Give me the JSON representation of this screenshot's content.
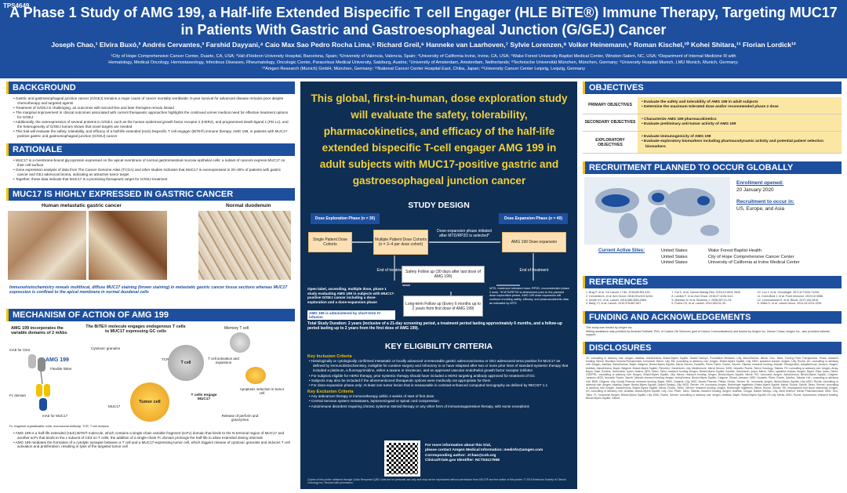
{
  "header": {
    "poster_id": "TPS4649",
    "title_line1": "A Phase 1 Study of AMG 199, a Half-life Extended Bispecific T cell Engager (HLE BiTE®) Immune Therapy, Targeting MUC17",
    "title_line2": "in Patients With Gastric and Gastroesophageal Junction (G/GEJ) Cancer",
    "authors": "Joseph Chao,¹ Elvira Buxó,² Andrés Cervantes,³ Farshid Dayyani,⁴ Caio Max Sao Pedro Rocha Lima,⁵ Richard Greil,⁶ Hanneke van Laarhoven,⁷ Sylvie Lorenzen,⁸ Volker Heinemann,⁹ Roman Kischel,¹⁰ Kohei Shitara,¹¹ Florian Lordick¹²",
    "affiliations_line1": "¹City of Hope Comprehensive Cancer Center, Duarte, CA, USA; ²Vall d'Hebron University Hospital, Barcelona, Spain; ³University of Valencia, Valencia, Spain; ⁴University of California Irvine, Irvine, CA, USA; ⁵Wake Forest University Baptist Medical Center, Winston-Salem, NC, USA; ⁶Department of Internal Medicine III with",
    "affiliations_line2": "Hematology, Medical Oncology, Hemostaseology, Infectious Diseases, Rheumatology, Oncologic Center, Paracelsus Medical University, Salzburg, Austria; ⁷University of Amsterdam, Amsterdam, Netherlands; ⁸Technische Universität München, München, Germany; ⁹University Hospital Munich, LMU Munich, Munich, Germany;",
    "affiliations_line3": "¹⁰Amgen Research (Munich) GmbH, München, Germany; ¹¹National Cancer Center Hospital East, Chiba, Japan; ¹²University Cancer Center Leipzig, Leipzig, Germany"
  },
  "left": {
    "background": {
      "heading": "BACKGROUND",
      "bullets": [
        "Gastric and gastroesophageal junction cancer (G/GEJ) remains a major cause of cancer mortality worldwide; 5-year survival for advanced disease remains poor despite chemotherapy and targeted agents",
        "Treatment of G/GEJ is challenging, as outcomes with second-line and later therapies remain limited",
        "The marginal improvement in clinical outcomes associated with current therapeutic approaches highlights the continued unmet medical need for effective treatment options for G/GEJ",
        "Additionally, the overexpression of several proteins in G/GEJ, such as the human epidermal growth factor receptor 2 (HER2), and programmed death-ligand 1 (PD-L1), and the heterogeneity of G/GEJ tumors shows that novel targets are needed",
        "This trial will evaluate the safety, tolerability, and efficacy of a half-life extended (HLE) bispecific T cell engager (BiTE®) immune therapy, AMG 199, in patients with MUC17-positive gastric and gastroesophageal junction (G/GEJ) cancer"
      ]
    },
    "rationale": {
      "heading": "RATIONALE",
      "bullets": [
        "MUC17 is a membrane-bound glycoprotein expressed on the apical membrane of normal gastrointestinal mucosa epithelial cells; a subset of cancers express MUC17 on their cell surface",
        "Gene expression analysis of data from The Cancer Genome Atlas (TCGA) and other studies indicates that MUC17 is overexpressed in 20–30% of patients with gastric cancer and GEJ adenocarcinoma, indicating an attractive tumor target",
        "Together, these data indicate that MUC17 is a promising therapeutic target for G/GEJ treatment"
      ]
    },
    "muc17": {
      "heading": "MUC17 IS HIGHLY EXPRESSED IN GASTRIC CANCER",
      "image1_label": "Human metastatic gastric cancer",
      "image2_label": "Normal duodenum",
      "caption": "Immunohistochemistry reveals multifocal, diffuse MUC17 staining (brown staining) in metastatic gastric cancer tissue sections whereas MUC17 expression is confined to the apical membrane in normal duodenal cells"
    },
    "moa": {
      "heading": "MECHANISM OF ACTION OF AMG 199",
      "text_amg": "AMG 199 incorporates the variable domains of 2 mAbs",
      "text_bite": "The BiTE® molecule engages endogenous T cells to MUC17 expressing GC cells",
      "fv_cd3": "mAb for CD3",
      "amg_label": "AMG 199",
      "flexible_linker": "Flexible linker",
      "fc_domain": "Fc domain",
      "mab_muc17": "mAb for MUC17",
      "cytotoxic": "Cytotoxic granules",
      "tcr": "TCR",
      "cd3": "CD3",
      "t_cell": "T cell",
      "tumor_cell": "Tumor cell",
      "muc17_label": "MUC17",
      "memory": "Memory T cell",
      "activation": "T cell activation and expansion",
      "apoptosis": "Apoptosis induction in tumor cell",
      "t_cells_engage": "T cells engage MUC17",
      "release": "Release of perforin and granzymes",
      "footnote": "Fc, fragment crystallizable; mAb, monoclonal antibody; TCR, T cell receptor",
      "bullets": [
        "AMG 199 is a half-life extended (HLE) BiTE® molecule, which contains a single-chain variable fragment (scFv) domain that binds to the N-terminal region of MUC17 and another scFv that binds to the ε subunit of CD3 on T cells; the addition of a single-chain Fc domain prolongs the half-life to allow extended dosing intervals",
        "AMG 199 mediates the formation of a cytolytic synapse between a T cell and a MUC17-expressing tumor cell, which triggers release of cytotoxic granules and induces T cell activation and proliferation, resulting in lysis of the targeted tumor cell"
      ]
    }
  },
  "mid": {
    "hero": "This global, first-in-human, dose exploration study will evaluate the safety, tolerability, pharmacokinetics, and efficacy of the half-life extended bispecific T-cell engager AMG 199 in adult subjects with MUC17-positive gastric and gastroesophageal junction cancer",
    "study_design": {
      "heading": "STUDY DESIGN",
      "exploration_phase": "Dose Exploration Phase (n = 30)",
      "expansion_phase": "Dose Expansion Phase (n = 40)",
      "single_cohorts": "Single Patient Dose Cohorts",
      "multiple_cohorts": "Multiple Patient Dose Cohorts (n = 3–4 per dose cohort)",
      "initiated": "Dose-expansion phase initiated after MTD/RP2D is selected*",
      "expansion_box": "AMG 199 Dose expansion",
      "end1": "End of treatment",
      "end2": "End of treatment",
      "safety": "Safety Follow up (30 days after last dose of AMG 199)",
      "longterm": "Long-term Follow up (Every 6 months up to 2 years from first dose of AMG 199)",
      "desc": "Open-label, ascending, multiple dose, phase 1 study evaluating AMG 199 in subjects with MUC17-positive G/GEJ cancer including a dose-exploration and a dose-expansion phase",
      "admin": "AMG 199 is administered by short-term IV infusion",
      "note": "MTD, maximum tolerated dose; RP2D, recommended phase 2 dose. *If MTD/RP2D is determined prior to the planned dose exploration phase, AMG 199 dose expansion will continue enrolling safety, efficacy, and pharmacokinetic data as indicated by MTD",
      "duration": "Total Study Duration: 2 years (inclusive of a 21-day screening period, a treatment period lasting approximately 6 months, and a follow-up period lasting up to 2 years from the first dose of AMG 199)."
    },
    "eligibility": {
      "heading": "KEY ELIGIBILITY CRITERIA",
      "inclusion_head": "Key Inclusion Criteria",
      "inclusion": [
        "Histologically or cytologically confirmed metastatic or locally advanced unresectable gastric adenocarcinoma or GEJ adenocarcinoma positive for MUC17 as defined by immunohistochemistry, ineligible for curative surgery and refractory to or have relapsed after two or more prior lines of standard systemic therapy that included a platinum, a fluoropyrimidine, either a taxane or irinotecan, and an approved vascular endothelial growth factor receptor inhibitor",
        "For subjects eligible for HER2 therapy, prior systemic therapy should have included a HER2 targeting antibody approved for treatment of GC",
        "Subjects may also be included if the aforementioned therapeutic options were medically not appropriate for them",
        "For dose-expansion phase only: At least one tumor lesion that is measurable in contrast-enhanced computed tomography as defined by RECIST 1.1"
      ],
      "exclusion_head": "Key Exclusion Criteria",
      "exclusion": [
        "Any anticancer therapy or immunotherapy within 4 weeks of start of first dose",
        "Central nervous system metastases, leptomeningeal or spinal cord compression",
        "Autoimmune disorders requiring chronic systemic steroid therapy or any other form of immunosuppressive therapy, with some exceptions"
      ],
      "contact_head": "For more information about this trial,",
      "contact_email": "please contact Amgen Medical Information: medinfo@amgen.com",
      "contact_author": "Corresponding author: JChao@coh.org",
      "clinical_id": "ClinicalTrials.gov Identifier: NCT04117958",
      "copies": "Copies of this poster obtained through Quick Response (QR) Code are for personal use only and may not be reproduced without permission from ASCO® and the author of this poster. © 2019 American Society of Clinical Oncology Inc. Reused with permission."
    }
  },
  "right": {
    "objectives": {
      "heading": "OBJECTIVES",
      "rows": [
        {
          "label": "PRIMARY OBJECTIVES",
          "items": [
            "Evaluate the safety and tolerability of AMG 199 in adult subjects",
            "Determine the maximum tolerated dose and/or recommended phase 2 dose"
          ]
        },
        {
          "label": "SECONDARY OBJECTIVES",
          "items": [
            "Characterize AMG 199 pharmacokinetics",
            "Evaluate preliminary anti-tumor activity of AMG 199"
          ]
        },
        {
          "label": "EXPLORATORY OBJECTIVES",
          "items": [
            "Evaluate immunogenicity of AMG 199",
            "Evaluate exploratory biomarkers including pharmacodynamic activity and potential patient selection biomarkers"
          ]
        }
      ]
    },
    "recruitment": {
      "heading": "RECRUITMENT PLANNED TO OCCUR GLOBALLY",
      "enroll_label": "Enrollment opened:",
      "enroll_date": "20 January 2020",
      "recruit_label": "Recruitment to occur in:",
      "recruit_regions": "US, Europe, and Asia",
      "sites_label": "Current Active Sites:",
      "sites": [
        {
          "country": "United States",
          "site": "Wake Forest Baptist Health"
        },
        {
          "country": "United States",
          "site": "City of Hope Comprehensive Cancer Center"
        },
        {
          "country": "United States",
          "site": "University of California at Irvine Medical Center"
        }
      ]
    },
    "references": {
      "heading": "REFERENCES",
      "items": [
        "1. Bray F, et al. CA Cancer J Clin. 2018;68:394-424.",
        "2. Cervantes A, et al. Ann Oncol. 2018;29:iv102-iv104.",
        "3. Smyth EC, et al. Lancet. 2016;388:2654-2664.",
        "4. Bang YJ, et al. Lancet. 2010;376:687-697.",
        "5. Fuchs CS, et al. Lancet. 2014;383:31-39.",
        "6. Wilke H, et al. Lancet Oncol. 2014;15:1224-1235.",
        "7. Cai Z, et al. Cancer Manag Res. 2018;10:2631-2640.",
        "8. Lordick F, et al. Ann Oncol. 2016;27:1106-1112.",
        "9. Moniaux N, et al. Biochem J. 2006;397:21-29.",
        "10. Luu Y, et al. Oncotarget. 2017;8:71234-71245.",
        "11. Kuhn-Bold J, et al. Front Immunol. 2019;10:3088.",
        "12. Lorenczewski G, et al. Blood. 2017;130:2815."
      ]
    },
    "funding": {
      "heading": "FUNDING AND ACKNOWLEDGEMENTS",
      "text1": "This study was funded by Amgen Inc.",
      "text2": "Writing assistance was provided by Amanda Rothwell, PhD, of Cactus Life Sciences (part of Cactus Communications) and funded by Amgen Inc. Zanner Chase, Amgen Inc., also provided editorial support."
    },
    "disclosures": {
      "heading": "DISCLOSURES",
      "text": "JC: consulting or advisory role: Amgen, Astellas, AstraZeneca, Bristol-Myers Squibb, Daiichi Sankyo, Foundation Medicine, Lilly, MacroGenics, Merck, Ono, Taiho, Turning Point Therapeutics, Yiviva; research funding: Merck, Brooklyn ImmunoTherapeutics; honoraria: Merck, Lilly. EB: consulting or advisory role: Amgen, Bristol-Myers Squibb, Lilly, MSD; speakers bureau: Amgen, Lilly, Roche. AC: consulting or advisory role: Amgen, Astellas, AstraZeneca, Bayer, Beigene, Bristol-Myers Squibb, Merck Serono, Novartis, Pierre Fabre, Roche, Servier, Takeda; research funding: Actuate Therapeutics, Adaptimmune, Amcure, Amgen, Astellas, AstraZeneca, Bayer, Beigene, Bristol-Myers Squibb, FibroGen, Genentech, Lilly, MedImmune, Merck Serono, MSD, Novartis, Roche, Sierra Oncology, Takeda. FD: consulting or advisory role: Amgen, Array, Bayer, Eisai, Exelixis, Genentech, Ipsen, Natera, QED, Sirtex, Taiho; research funding: Amgen, Bristol-Myers Squibb, Exelixis, Genentech, Ipsen, Merck, Taiho; speakers bureau: Amgen, Bayer, Eisai, Ipsen, Sirtex. CMSPRL: consulting or advisory role: Amgen, Bristol-Myers Squibb, Lilly, Merck; research funding: Amgen, Bristol-Myers Squibb, Merck. RG: honoraria: Amgen, AstraZeneca, Bristol-Myers Squibb, Celgene, Janssen, MSD, Novartis, Roche, Sanofi, Takeda; research funding: Amgen, AstraZeneca, Bristol-Myers Squibb, Celgene, Gilead, Janssen, MSD, Novartis, Pfizer, Roche, Sandoz, Takeda. HvL: consulting or advisory role: BMS, Celgene, Lilly, Nordic Pharma; research funding: Bayer, BMS, Celgene, Lilly, MSD, Nordic Pharma, Philips, Roche, Servier. SL: honoraria: Amgen, Bristol-Myers Squibb, Lilly, MSD, Roche; consulting or advisory role: Amgen, Astellas, Bayer, Bristol-Myers Squibb, Daiichi Sankyo, Lilly, MSD, Servier. VH: honoraria: Amgen, Boehringer Ingelheim, Bristol-Myers Squibb, Merck, Roche, Sanofi, Sirtex, Servier; consulting or advisory role: Amgen, AstraZeneca, Bristol-Myers Squibb, Merck, Roche, Sirtex, Servier; research funding: Amgen, Boehringer Ingelheim, Merck, Roche, Servier. RK: employment and stock ownership: Amgen. KS: consulting or advisory role: Astellas, Bristol-Myers Squibb, Lilly, Ono, Pfizer, Taiho, Takeda; research funding: Amgen, Astellas, Chugai, Daiichi Sankyo, Lilly, Medi Science, Merck Pharmaceutical, MSD, Ono, Taiho. FL: honoraria: Amgen, Bristol-Myers Squibb, Lilly, MSD, Roche, Servier; consulting or advisory role: Amgen, Astellas, Bayer, Bristol-Myers Squibb, Eli Lilly, Merck, MSD, Roche, Zymeworks; research funding: Bristol-Myers Squibb, Gilead."
    }
  },
  "colors": {
    "brand_blue": "#1d4f9e",
    "dark_panel": "#0e2e53",
    "hero_yellow": "#f2d03b",
    "accent_yellow": "#f2c200",
    "objective_fill": "#fbe6a3"
  }
}
